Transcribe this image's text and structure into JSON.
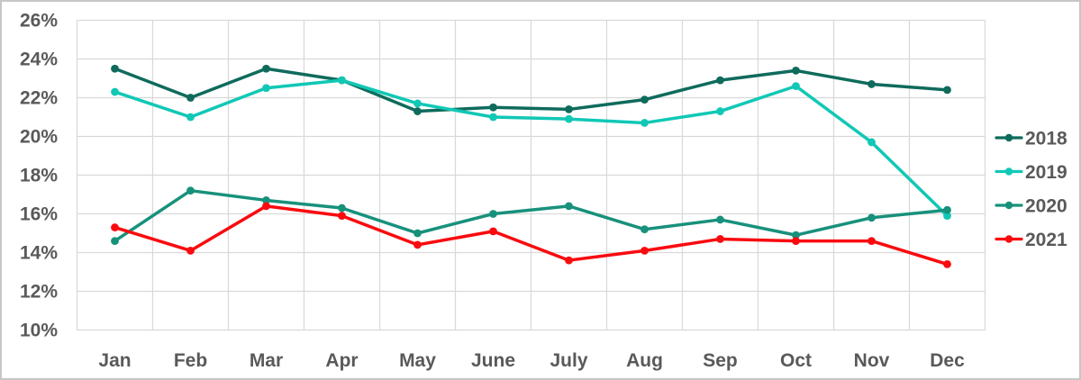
{
  "chart_data": {
    "type": "line",
    "title": "",
    "xlabel": "",
    "ylabel": "",
    "categories": [
      "Jan",
      "Feb",
      "Mar",
      "Apr",
      "May",
      "June",
      "July",
      "Aug",
      "Sep",
      "Oct",
      "Nov",
      "Dec"
    ],
    "series": [
      {
        "name": "2018",
        "color": "#0F6B5C",
        "values": [
          23.5,
          22.0,
          23.5,
          22.9,
          21.3,
          21.5,
          21.4,
          21.9,
          22.9,
          23.4,
          22.7,
          22.4
        ]
      },
      {
        "name": "2019",
        "color": "#10C8B5",
        "values": [
          22.3,
          21.0,
          22.5,
          22.9,
          21.7,
          21.0,
          20.9,
          20.7,
          21.3,
          22.6,
          19.7,
          15.9
        ]
      },
      {
        "name": "2020",
        "color": "#17917C",
        "values": [
          14.6,
          17.2,
          16.7,
          16.3,
          15.0,
          16.0,
          16.4,
          15.2,
          15.7,
          14.9,
          15.8,
          16.2
        ]
      },
      {
        "name": "2021",
        "color": "#F90B0F",
        "values": [
          15.3,
          14.1,
          16.4,
          15.9,
          14.4,
          15.1,
          13.6,
          14.1,
          14.7,
          14.6,
          14.6,
          13.4
        ]
      }
    ],
    "ylim": [
      10,
      26
    ],
    "ytick_step": 2,
    "ytick_labels": [
      "26%",
      "24%",
      "22%",
      "20%",
      "18%",
      "16%",
      "14%",
      "12%",
      "10%"
    ],
    "grid": true,
    "legend_position": "right",
    "legend_entries": [
      "2018",
      "2019",
      "2020",
      "2021"
    ]
  },
  "styles": {
    "text_color": "#595959",
    "gridline_color": "#D9D9D9",
    "border_color": "#C6C6C6",
    "background": "#FFFFFF"
  }
}
